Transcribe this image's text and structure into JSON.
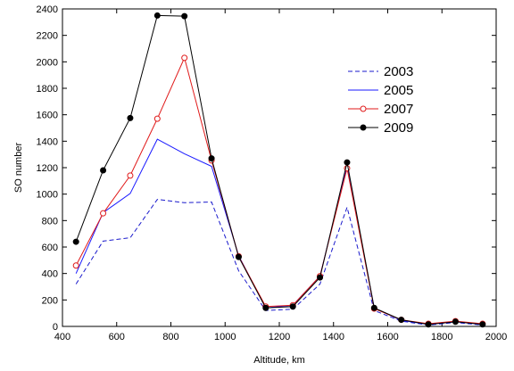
{
  "chart_data": {
    "type": "line",
    "xlabel": "Altitude, km",
    "ylabel": "SO number",
    "xlim": [
      400,
      2000
    ],
    "ylim": [
      0,
      2400
    ],
    "xticks": [
      400,
      600,
      800,
      1000,
      1200,
      1400,
      1600,
      1800,
      2000
    ],
    "yticks": [
      0,
      200,
      400,
      600,
      800,
      1000,
      1200,
      1400,
      1600,
      1800,
      2000,
      2200,
      2400
    ],
    "grid": false,
    "legend_position": "upper-right",
    "x": [
      450,
      550,
      650,
      750,
      850,
      950,
      1050,
      1150,
      1250,
      1350,
      1450,
      1550,
      1650,
      1750,
      1850,
      1950
    ],
    "series": [
      {
        "name": "2003",
        "color": "#1a1acc",
        "dash": "dashed",
        "marker": "none",
        "values": [
          320,
          645,
          670,
          960,
          935,
          940,
          420,
          120,
          130,
          320,
          900,
          120,
          40,
          10,
          30,
          10
        ]
      },
      {
        "name": "2005",
        "color": "#1a1aff",
        "dash": "solid",
        "marker": "none",
        "values": [
          400,
          860,
          1005,
          1415,
          1305,
          1210,
          535,
          140,
          160,
          380,
          1210,
          140,
          45,
          15,
          35,
          15
        ]
      },
      {
        "name": "2007",
        "color": "#e01a1a",
        "dash": "solid",
        "marker": "open-circle",
        "values": [
          460,
          855,
          1140,
          1570,
          2030,
          1255,
          530,
          150,
          160,
          380,
          1195,
          135,
          50,
          20,
          40,
          20
        ]
      },
      {
        "name": "2009",
        "color": "#000000",
        "dash": "solid",
        "marker": "filled-circle",
        "values": [
          640,
          1180,
          1575,
          2350,
          2345,
          1270,
          525,
          140,
          150,
          370,
          1240,
          140,
          50,
          15,
          35,
          15
        ]
      }
    ]
  }
}
